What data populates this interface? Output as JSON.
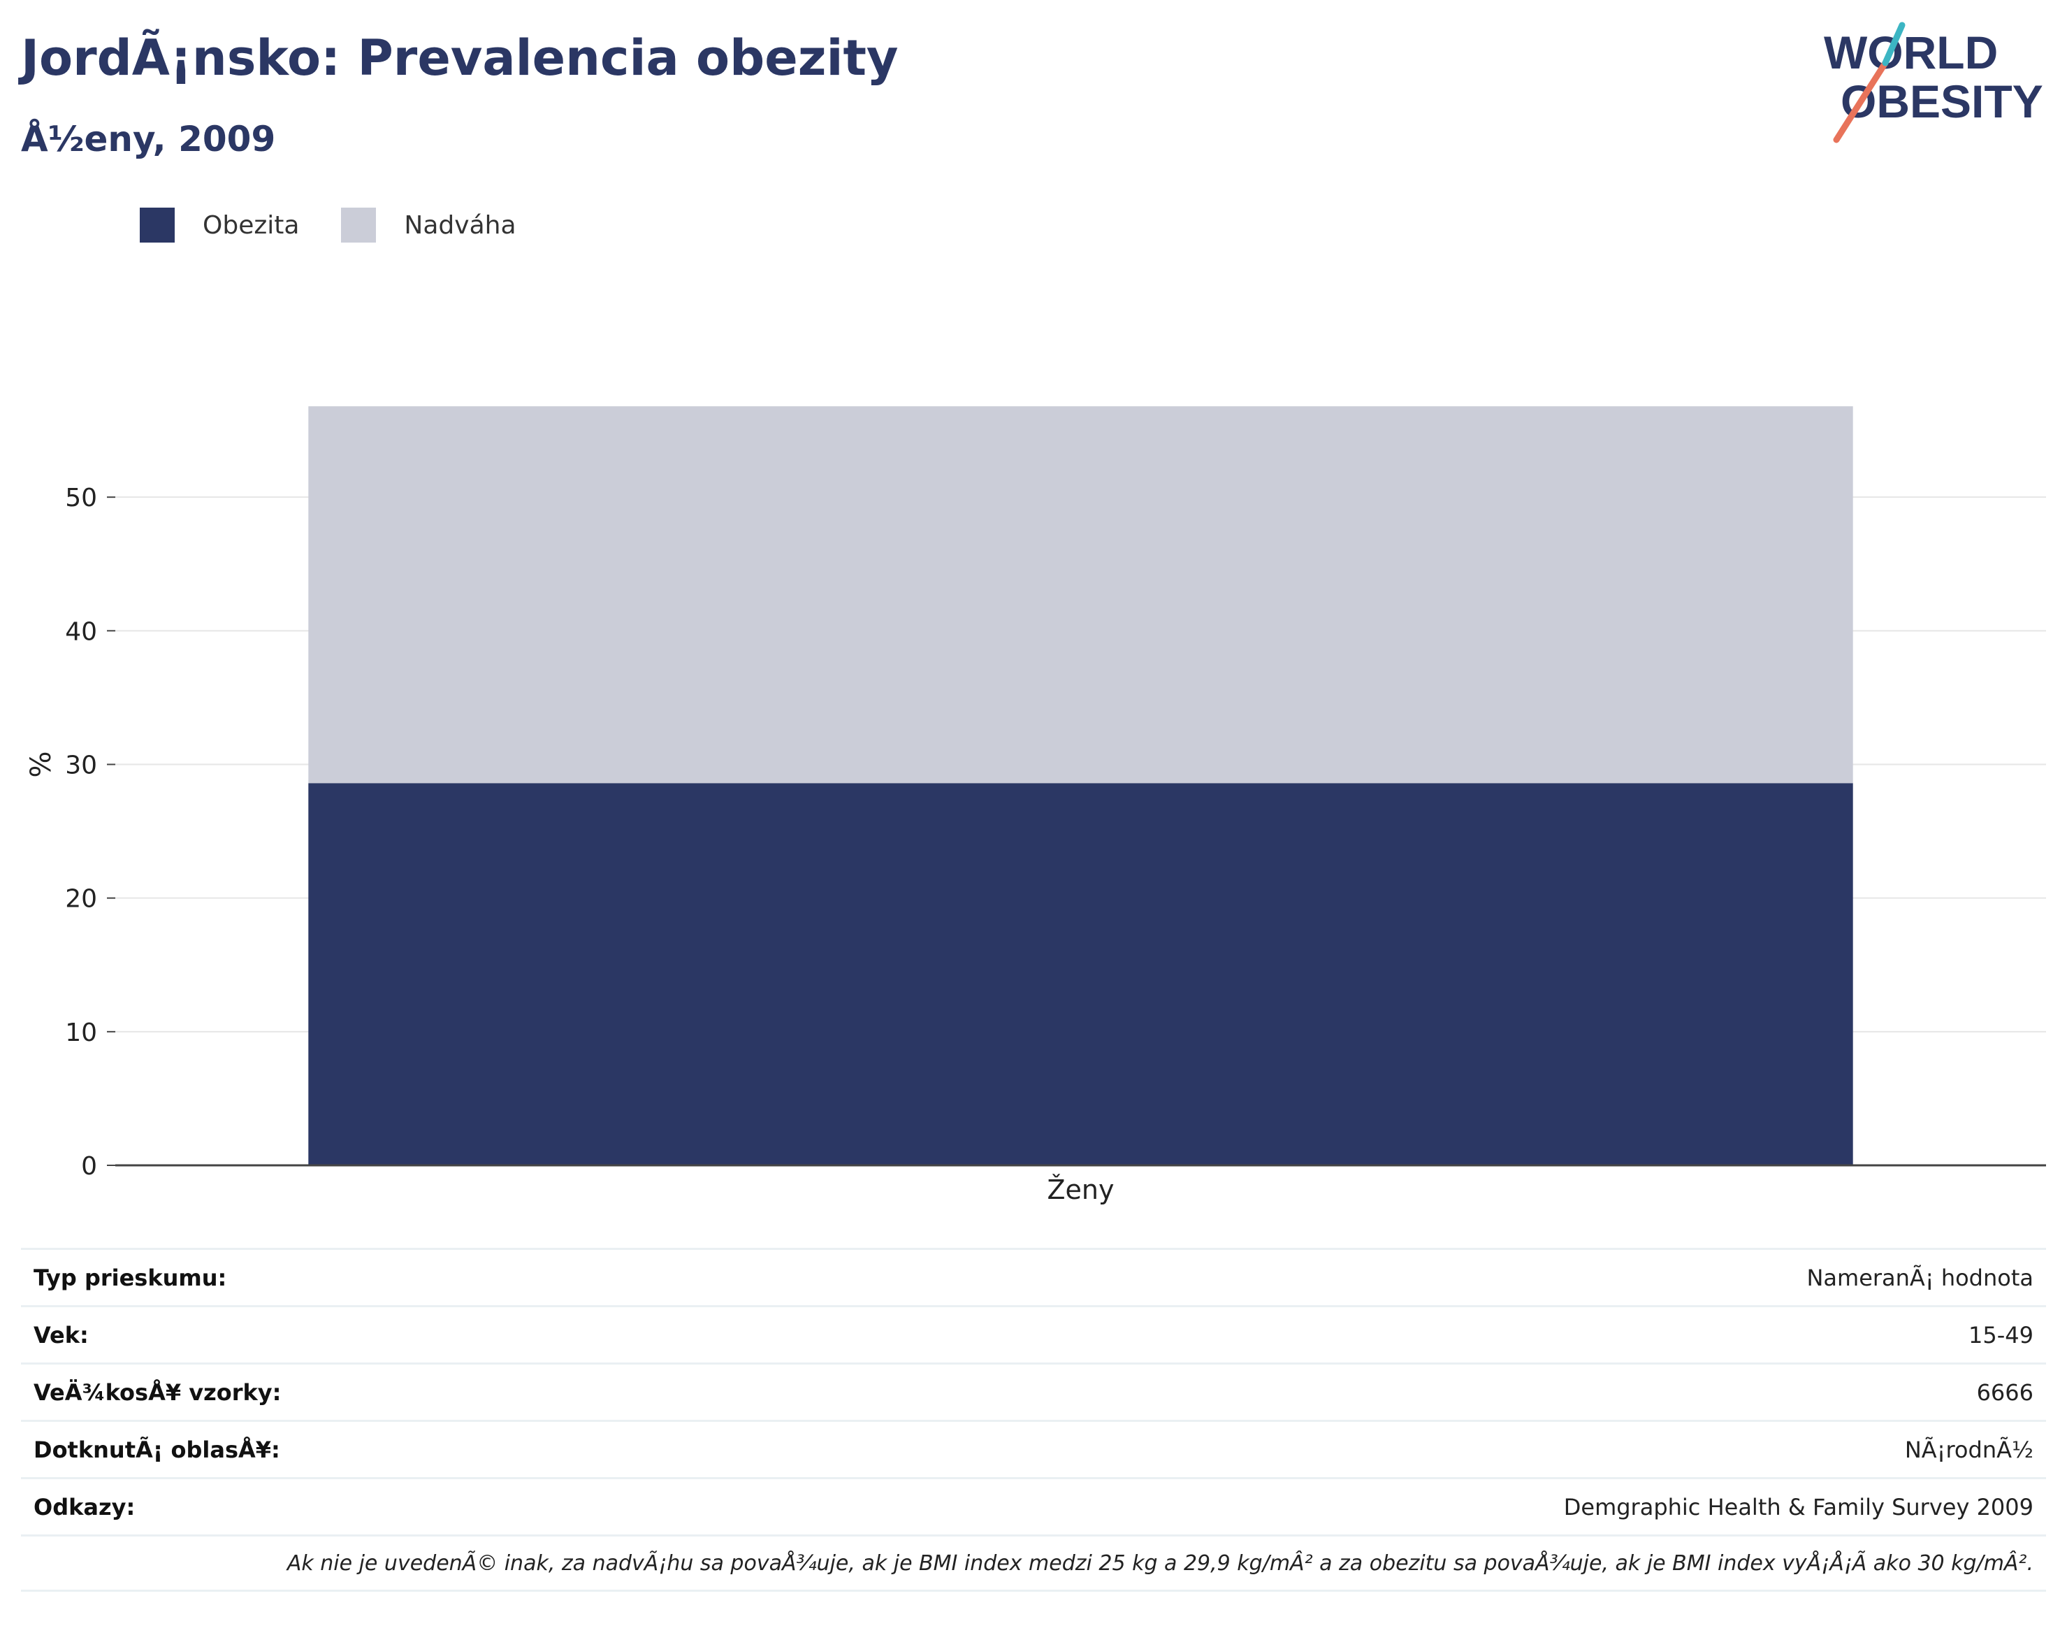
{
  "header": {
    "title": "JordÃ¡nsko: Prevalencia obezity",
    "subtitle": "Å½eny, 2009"
  },
  "logo": {
    "line1": "WORLD",
    "line2": "OBESITY",
    "colors": {
      "text": "#2b3764",
      "stroke_a": "#e8735a",
      "stroke_b": "#3cb5c3"
    }
  },
  "legend": [
    {
      "label": "Obezita",
      "color": "#2b3764"
    },
    {
      "label": "Nadváha",
      "color": "#cbcdd8"
    }
  ],
  "chart_data": {
    "type": "bar",
    "stacked": true,
    "categories": [
      "Ženy"
    ],
    "series": [
      {
        "name": "Obezita",
        "values": [
          28.6
        ],
        "color": "#2b3764"
      },
      {
        "name": "Nadváha",
        "values": [
          28.2
        ],
        "color": "#cbcdd8"
      }
    ],
    "ylabel": "%",
    "ylim": [
      0,
      60
    ],
    "yticks": [
      0,
      10,
      20,
      30,
      40,
      50
    ],
    "grid": true,
    "legend_position": "top-left"
  },
  "info": {
    "rows": [
      {
        "key": "Typ prieskumu:",
        "value": "NameranÃ¡ hodnota"
      },
      {
        "key": "Vek:",
        "value": "15-49"
      },
      {
        "key": "VeÄ¾kosÅ¥ vzorky:",
        "value": "6666"
      },
      {
        "key": "DotknutÃ¡ oblasÅ¥:",
        "value": "NÃ¡rodnÃ½"
      },
      {
        "key": "Odkazy:",
        "value": "Demgraphic Health & Family Survey 2009"
      }
    ],
    "note": "Ak nie je uvedenÃ© inak, za nadvÃ¡hu sa povaÅ¾uje, ak je BMI index medzi 25 kg a 29,9 kg/mÂ² a za obezitu sa povaÅ¾uje, ak je BMI index vyÅ¡Å¡Ã ako 30 kg/mÂ²."
  }
}
